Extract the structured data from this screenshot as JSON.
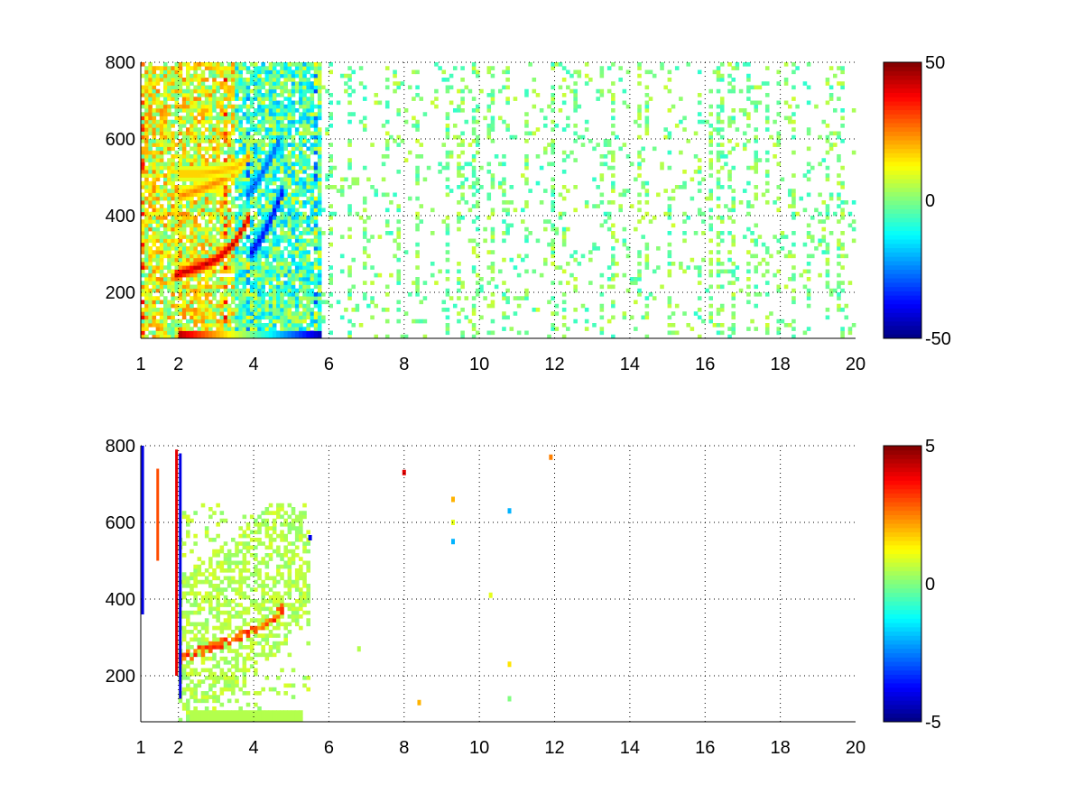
{
  "chart_data": [
    {
      "type": "heatmap",
      "title": "",
      "xlabel": "",
      "ylabel": "",
      "xlim": [
        1,
        20
      ],
      "ylim": [
        80,
        800
      ],
      "xticks": [
        1,
        2,
        4,
        6,
        8,
        10,
        12,
        14,
        16,
        18,
        20
      ],
      "xtick_labels": [
        "1",
        "2",
        "4",
        "6",
        "8",
        "10",
        "12",
        "14",
        "16",
        "18",
        "20"
      ],
      "yticks": [
        200,
        400,
        600,
        800
      ],
      "ytick_labels": [
        "200",
        "400",
        "600",
        "800"
      ],
      "grid": true,
      "colormap": "jet",
      "clim": [
        -50,
        50
      ],
      "colorbar_ticks": [
        -50,
        0,
        50
      ],
      "colorbar_tick_labels": [
        "-50",
        "0",
        "50"
      ],
      "colorbar_position": "right",
      "features": {
        "dense_region_x": [
          1,
          5.8
        ],
        "sparse_region_x": [
          5.8,
          20
        ],
        "positive_ridges": [
          {
            "x": [
              1.9,
              2.5,
              3.0,
              3.5,
              3.9
            ],
            "y": [
              245,
              265,
              285,
              330,
              400
            ],
            "value": 45
          },
          {
            "x": [
              2.0,
              2.6,
              3.1,
              3.6,
              3.9
            ],
            "y": [
              450,
              470,
              490,
              520,
              560
            ],
            "value": 25
          },
          {
            "x": [
              2.0,
              2.6,
              3.0,
              3.5,
              3.8
            ],
            "y": [
              510,
              510,
              515,
              525,
              545
            ],
            "value": 20
          }
        ],
        "negative_ridges": [
          {
            "x": [
              3.9,
              4.2,
              4.5,
              4.8
            ],
            "y": [
              300,
              340,
              400,
              470
            ],
            "value": -40
          },
          {
            "x": [
              3.8,
              4.1,
              4.4,
              4.7
            ],
            "y": [
              450,
              490,
              540,
              600
            ],
            "value": -30
          }
        ],
        "bottom_band": {
          "x": [
            2.0,
            5.8
          ],
          "y": [
            80,
            100
          ],
          "value_left": 45,
          "value_right": -45
        }
      }
    },
    {
      "type": "heatmap",
      "title": "",
      "xlabel": "",
      "ylabel": "",
      "xlim": [
        1,
        20
      ],
      "ylim": [
        80,
        800
      ],
      "xticks": [
        1,
        2,
        4,
        6,
        8,
        10,
        12,
        14,
        16,
        18,
        20
      ],
      "xtick_labels": [
        "1",
        "2",
        "4",
        "6",
        "8",
        "10",
        "12",
        "14",
        "16",
        "18",
        "20"
      ],
      "yticks": [
        200,
        400,
        600,
        800
      ],
      "ytick_labels": [
        "200",
        "400",
        "600",
        "800"
      ],
      "grid": true,
      "colormap": "jet",
      "clim": [
        -5,
        5
      ],
      "colorbar_ticks": [
        -5,
        0,
        5
      ],
      "colorbar_tick_labels": [
        "-5",
        "0",
        "5"
      ],
      "colorbar_position": "right",
      "features": {
        "main_ridge": {
          "x": [
            2.0,
            2.6,
            3.2,
            3.8,
            4.4,
            4.8
          ],
          "y": [
            245,
            265,
            285,
            310,
            340,
            380
          ],
          "value": 3
        },
        "background_region": {
          "x": [
            2.0,
            5.5
          ],
          "y": [
            80,
            650
          ],
          "value": 0.5
        },
        "vertical_streaks": [
          {
            "x": 1.05,
            "y": [
              360,
              800
            ],
            "value": -4
          },
          {
            "x": 1.45,
            "y": [
              500,
              740
            ],
            "value": 3
          },
          {
            "x": 1.95,
            "y": [
              200,
              790
            ],
            "value": 4
          },
          {
            "x": 2.05,
            "y": [
              140,
              780
            ],
            "value": -4
          }
        ],
        "isolated_points": [
          {
            "x": 8.0,
            "y": 730,
            "value": 4
          },
          {
            "x": 9.3,
            "y": 660,
            "value": 2
          },
          {
            "x": 9.3,
            "y": 600,
            "value": 1
          },
          {
            "x": 9.3,
            "y": 550,
            "value": -2
          },
          {
            "x": 10.8,
            "y": 630,
            "value": -2
          },
          {
            "x": 10.3,
            "y": 410,
            "value": 1
          },
          {
            "x": 10.8,
            "y": 230,
            "value": 1.5
          },
          {
            "x": 10.8,
            "y": 140,
            "value": 0
          },
          {
            "x": 8.4,
            "y": 130,
            "value": 2
          },
          {
            "x": 11.9,
            "y": 770,
            "value": 2.5
          },
          {
            "x": 6.8,
            "y": 270,
            "value": 0.5
          },
          {
            "x": 5.5,
            "y": 560,
            "value": -4
          }
        ]
      }
    }
  ]
}
